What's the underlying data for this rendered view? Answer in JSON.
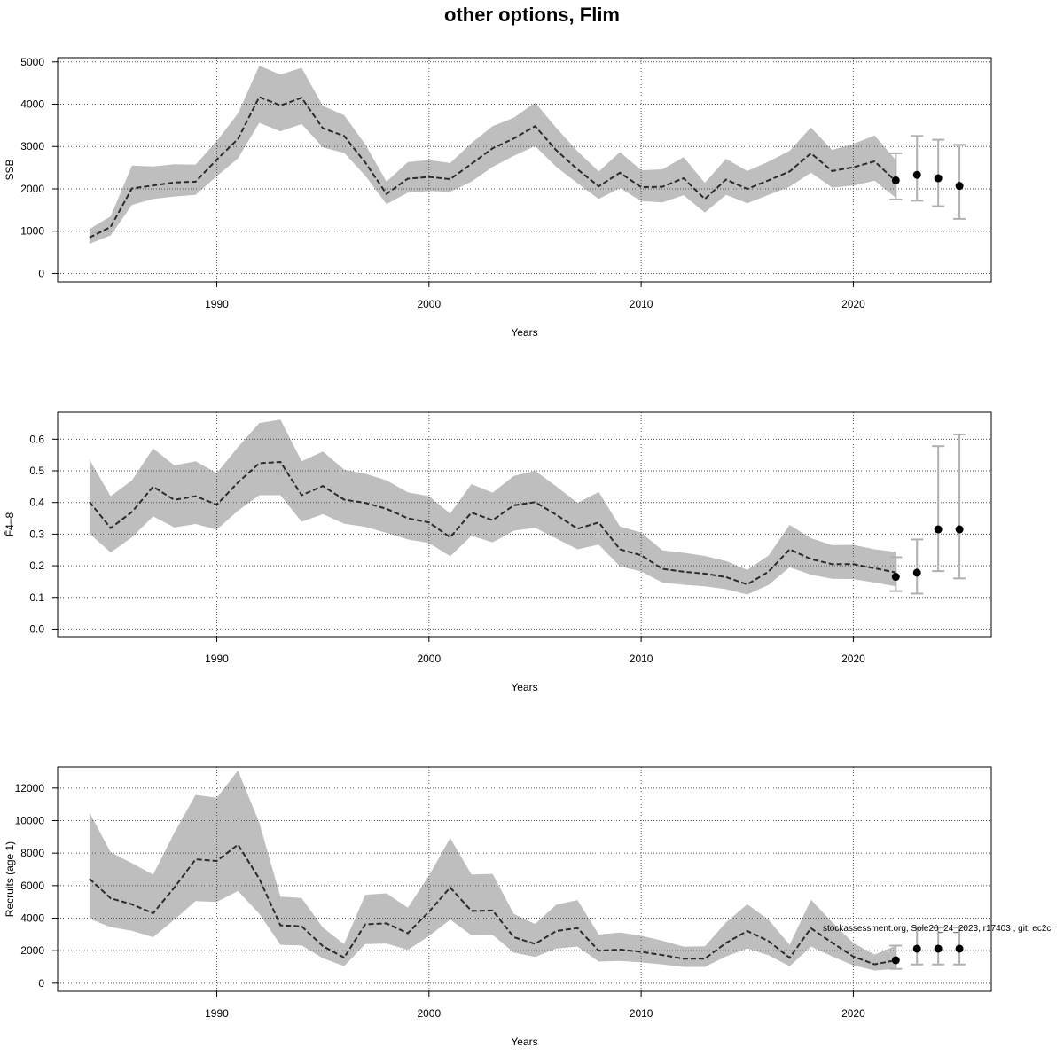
{
  "title": "other options, Flim",
  "footnote": "stockassessment.org, Sole20_24_2023, r17403 , git: ec2c",
  "colors": {
    "band": "#bebebe",
    "line": "#2b2b2b",
    "grid": "#555555",
    "point": "#000000",
    "errorbar": "#b0b0b0"
  },
  "chart_data": [
    {
      "type": "line",
      "title": "",
      "xlabel": "Years",
      "ylabel": "SSB",
      "xlim": [
        1982.5,
        2026.5
      ],
      "ylim": [
        -200,
        5100
      ],
      "xticks": [
        1990,
        2000,
        2010,
        2020
      ],
      "yticks": [
        0,
        1000,
        2000,
        3000,
        4000,
        5000
      ],
      "grid": true,
      "x": [
        1984,
        1985,
        1986,
        1987,
        1988,
        1989,
        1990,
        1991,
        1992,
        1993,
        1994,
        1995,
        1996,
        1997,
        1998,
        1999,
        2000,
        2001,
        2002,
        2003,
        2004,
        2005,
        2006,
        2007,
        2008,
        2009,
        2010,
        2011,
        2012,
        2013,
        2014,
        2015,
        2016,
        2017,
        2018,
        2019,
        2020,
        2021,
        2022
      ],
      "estimate": [
        850,
        1100,
        2010,
        2080,
        2150,
        2170,
        2690,
        3180,
        4170,
        3970,
        4150,
        3430,
        3250,
        2620,
        1880,
        2240,
        2280,
        2230,
        2590,
        2960,
        3190,
        3480,
        2910,
        2460,
        2060,
        2380,
        2040,
        2050,
        2250,
        1760,
        2220,
        2000,
        2200,
        2410,
        2840,
        2420,
        2510,
        2650,
        2180
      ],
      "lower": [
        700,
        900,
        1620,
        1760,
        1820,
        1860,
        2300,
        2720,
        3560,
        3360,
        3530,
        2980,
        2850,
        2310,
        1640,
        1910,
        1950,
        1930,
        2170,
        2520,
        2780,
        3010,
        2520,
        2130,
        1760,
        2020,
        1710,
        1680,
        1850,
        1440,
        1860,
        1660,
        1860,
        2050,
        2380,
        2030,
        2080,
        2190,
        1790
      ],
      "upper": [
        1050,
        1350,
        2550,
        2530,
        2580,
        2570,
        3130,
        3780,
        4910,
        4700,
        4860,
        3960,
        3740,
        3050,
        2170,
        2630,
        2680,
        2610,
        3080,
        3480,
        3680,
        4040,
        3440,
        2890,
        2410,
        2870,
        2440,
        2460,
        2750,
        2140,
        2710,
        2420,
        2640,
        2900,
        3450,
        2920,
        3060,
        3260,
        2680
      ],
      "forecast": [
        {
          "x": 2022,
          "median": 2200,
          "low": 1750,
          "high": 2840
        },
        {
          "x": 2023,
          "median": 2330,
          "low": 1720,
          "high": 3250
        },
        {
          "x": 2024,
          "median": 2250,
          "low": 1590,
          "high": 3160
        },
        {
          "x": 2025,
          "median": 2070,
          "low": 1290,
          "high": 3040
        }
      ]
    },
    {
      "type": "line",
      "title": "",
      "xlabel": "Years",
      "ylabel": "F̄4–8",
      "xlim": [
        1982.5,
        2026.5
      ],
      "ylim": [
        -0.024,
        0.685
      ],
      "xticks": [
        1990,
        2000,
        2010,
        2020
      ],
      "yticks": [
        0.0,
        0.1,
        0.2,
        0.3,
        0.4,
        0.5,
        0.6
      ],
      "grid": true,
      "x": [
        1984,
        1985,
        1986,
        1987,
        1988,
        1989,
        1990,
        1991,
        1992,
        1993,
        1994,
        1995,
        1996,
        1997,
        1998,
        1999,
        2000,
        2001,
        2002,
        2003,
        2004,
        2005,
        2006,
        2007,
        2008,
        2009,
        2010,
        2011,
        2012,
        2013,
        2014,
        2015,
        2016,
        2017,
        2018,
        2019,
        2020,
        2021,
        2022
      ],
      "estimate": [
        0.402,
        0.319,
        0.37,
        0.45,
        0.408,
        0.42,
        0.393,
        0.463,
        0.524,
        0.528,
        0.423,
        0.452,
        0.409,
        0.399,
        0.38,
        0.35,
        0.337,
        0.29,
        0.368,
        0.344,
        0.391,
        0.401,
        0.361,
        0.317,
        0.337,
        0.252,
        0.233,
        0.19,
        0.181,
        0.175,
        0.164,
        0.141,
        0.181,
        0.252,
        0.221,
        0.205,
        0.205,
        0.192,
        0.179
      ],
      "lower": [
        0.302,
        0.242,
        0.29,
        0.356,
        0.321,
        0.332,
        0.314,
        0.374,
        0.423,
        0.423,
        0.339,
        0.363,
        0.333,
        0.323,
        0.304,
        0.283,
        0.272,
        0.23,
        0.295,
        0.274,
        0.311,
        0.32,
        0.286,
        0.252,
        0.267,
        0.198,
        0.182,
        0.147,
        0.14,
        0.135,
        0.126,
        0.109,
        0.139,
        0.195,
        0.172,
        0.159,
        0.158,
        0.147,
        0.135
      ],
      "upper": [
        0.535,
        0.42,
        0.47,
        0.571,
        0.517,
        0.53,
        0.493,
        0.575,
        0.651,
        0.662,
        0.53,
        0.561,
        0.504,
        0.491,
        0.47,
        0.432,
        0.42,
        0.365,
        0.458,
        0.431,
        0.484,
        0.5,
        0.451,
        0.399,
        0.433,
        0.324,
        0.305,
        0.249,
        0.241,
        0.231,
        0.215,
        0.187,
        0.232,
        0.329,
        0.287,
        0.265,
        0.266,
        0.252,
        0.244
      ],
      "forecast": [
        {
          "x": 2022,
          "median": 0.165,
          "low": 0.12,
          "high": 0.227
        },
        {
          "x": 2023,
          "median": 0.178,
          "low": 0.112,
          "high": 0.283
        },
        {
          "x": 2024,
          "median": 0.315,
          "low": 0.183,
          "high": 0.578
        },
        {
          "x": 2025,
          "median": 0.315,
          "low": 0.16,
          "high": 0.615
        }
      ]
    },
    {
      "type": "line",
      "title": "",
      "xlabel": "Years",
      "ylabel": "Recruits (age 1)",
      "xlim": [
        1982.5,
        2026.5
      ],
      "ylim": [
        -500,
        13300
      ],
      "xticks": [
        1990,
        2000,
        2010,
        2020
      ],
      "yticks": [
        0,
        2000,
        4000,
        6000,
        8000,
        10000,
        12000
      ],
      "grid": true,
      "x": [
        1984,
        1985,
        1986,
        1987,
        1988,
        1989,
        1990,
        1991,
        1992,
        1993,
        1994,
        1995,
        1996,
        1997,
        1998,
        1999,
        2000,
        2001,
        2002,
        2003,
        2004,
        2005,
        2006,
        2007,
        2008,
        2009,
        2010,
        2011,
        2012,
        2013,
        2014,
        2015,
        2016,
        2017,
        2018,
        2019,
        2020,
        2021,
        2022
      ],
      "estimate": [
        6420,
        5220,
        4850,
        4300,
        5880,
        7620,
        7520,
        8520,
        6430,
        3560,
        3500,
        2280,
        1570,
        3620,
        3680,
        3070,
        4390,
        5890,
        4440,
        4470,
        2830,
        2420,
        3210,
        3390,
        2000,
        2070,
        1930,
        1730,
        1500,
        1510,
        2480,
        3210,
        2590,
        1560,
        3380,
        2490,
        1640,
        1160,
        1410
      ],
      "lower": [
        3960,
        3450,
        3220,
        2830,
        3900,
        5050,
        5000,
        5670,
        4270,
        2360,
        2320,
        1530,
        1050,
        2400,
        2440,
        2040,
        2900,
        3910,
        2950,
        2970,
        1880,
        1610,
        2130,
        2250,
        1330,
        1370,
        1280,
        1150,
        1000,
        1000,
        1650,
        2130,
        1720,
        1040,
        2250,
        1650,
        1090,
        780,
        880
      ],
      "upper": [
        10500,
        8050,
        7380,
        6680,
        9250,
        11580,
        11400,
        13080,
        9880,
        5320,
        5240,
        3420,
        2410,
        5440,
        5530,
        4640,
        6620,
        8930,
        6690,
        6720,
        4260,
        3640,
        4830,
        5110,
        2990,
        3110,
        2920,
        2610,
        2250,
        2270,
        3740,
        4850,
        3910,
        2360,
        5130,
        3760,
        2470,
        1760,
        2310
      ],
      "forecast": [
        {
          "x": 2022,
          "median": 1410,
          "low": 880,
          "high": 2310
        },
        {
          "x": 2023,
          "median": 2120,
          "low": 1150,
          "high": 3420
        },
        {
          "x": 2024,
          "median": 2120,
          "low": 1150,
          "high": 3420
        },
        {
          "x": 2025,
          "median": 2120,
          "low": 1150,
          "high": 3420
        }
      ]
    }
  ]
}
